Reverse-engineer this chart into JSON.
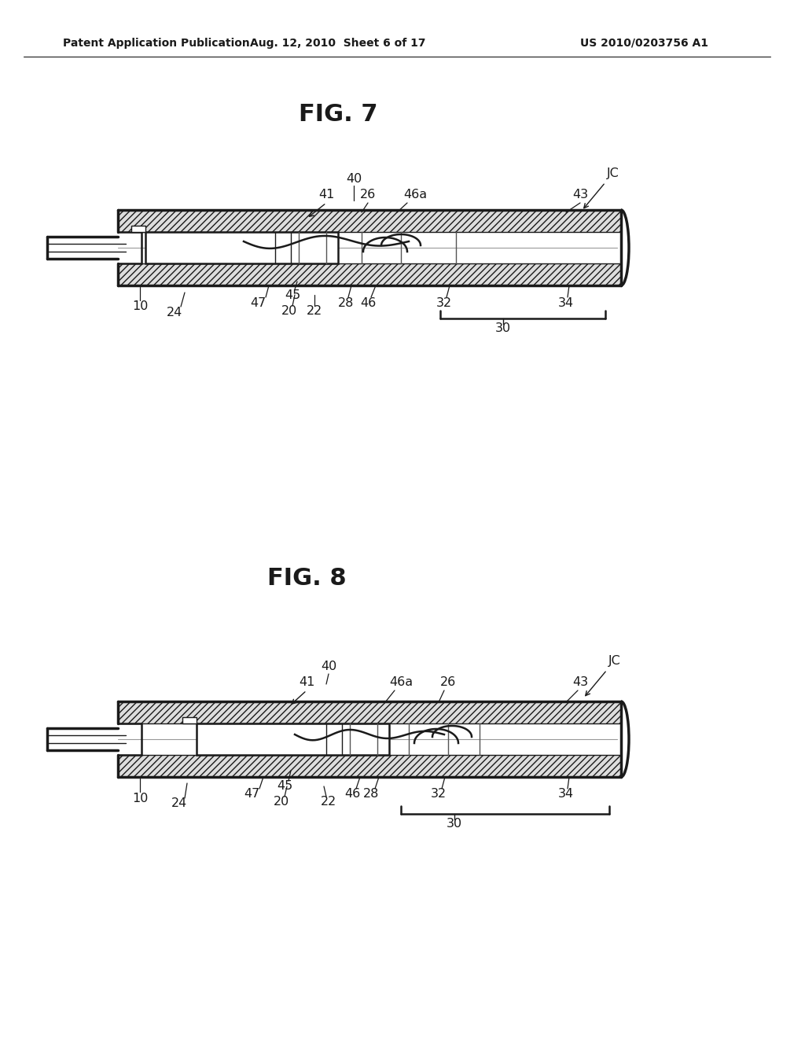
{
  "bg_color": "#ffffff",
  "header_text": "Patent Application Publication",
  "header_date": "Aug. 12, 2010  Sheet 6 of 17",
  "header_patent": "US 2010/0203756 A1",
  "fig7_title": "FIG. 7",
  "fig8_title": "FIG. 8",
  "line_color": "#1a1a1a"
}
